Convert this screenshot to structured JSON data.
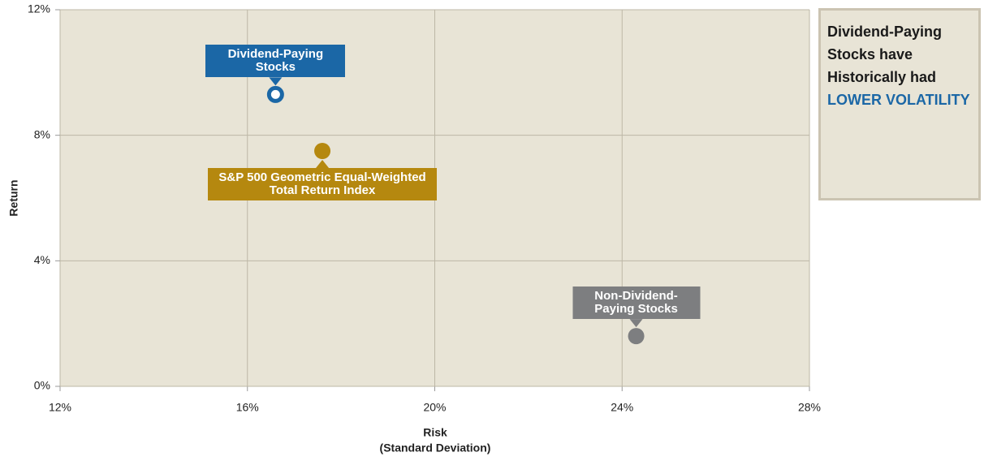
{
  "chart_data": {
    "type": "scatter",
    "xlabel": [
      "Risk",
      "(Standard Deviation)"
    ],
    "ylabel": "Return",
    "xlim": [
      12,
      28
    ],
    "xticks": [
      {
        "value": 12,
        "label": "12%"
      },
      {
        "value": 16,
        "label": "16%"
      },
      {
        "value": 20,
        "label": "20%"
      },
      {
        "value": 24,
        "label": "24%"
      },
      {
        "value": 28,
        "label": "28%"
      }
    ],
    "ylim": [
      0,
      12
    ],
    "yticks": [
      {
        "value": 0,
        "label": "0%"
      },
      {
        "value": 4,
        "label": "4%"
      },
      {
        "value": 8,
        "label": "8%"
      },
      {
        "value": 12,
        "label": "12%"
      }
    ],
    "grid": true,
    "series": [
      {
        "name": "Dividend-Paying Stocks",
        "color": "#1b67a6",
        "x": [
          16.6
        ],
        "y": [
          9.3
        ]
      },
      {
        "name": "S&P 500 Geometric Equal-Weighted Total Return Index",
        "color": "#b5880f",
        "x": [
          17.6
        ],
        "y": [
          7.5
        ]
      },
      {
        "name": "Non-Dividend-Paying Stocks",
        "color": "#7d7e80",
        "x": [
          24.3
        ],
        "y": [
          1.6
        ]
      }
    ],
    "callout": {
      "text": "Dividend-Paying Stocks have Historically had",
      "highlight": "LOWER VOLATILITY"
    }
  }
}
